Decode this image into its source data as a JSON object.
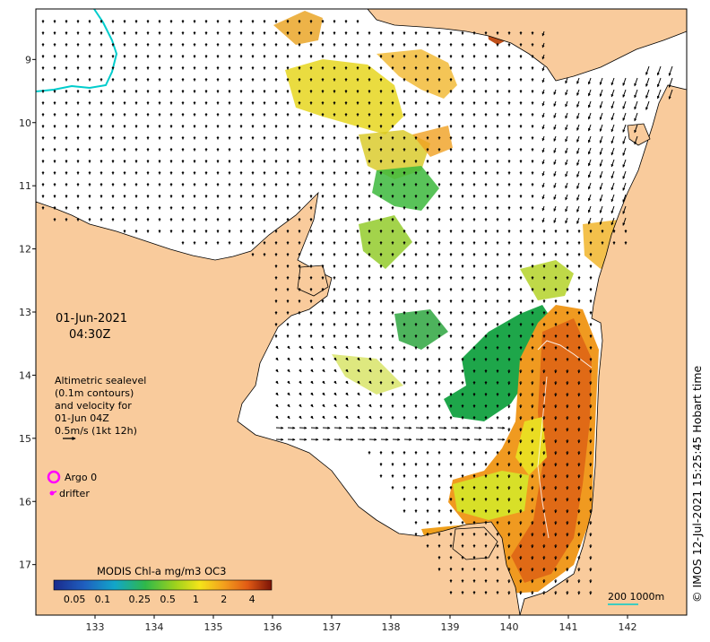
{
  "map": {
    "date": "01-Jun-2021",
    "time": "04:30Z",
    "lat_ticks": [
      "9",
      "10",
      "11",
      "12",
      "13",
      "14",
      "15",
      "16",
      "17"
    ],
    "lon_ticks": [
      "133",
      "134",
      "135",
      "136",
      "137",
      "138",
      "139",
      "140",
      "141",
      "142"
    ],
    "lat_range": [
      -17.8,
      -8.2
    ],
    "lon_range": [
      132.0,
      143.0
    ]
  },
  "legend": {
    "line1": "Altimetric sealevel",
    "line2": "(0.1m contours)",
    "line3": "and velocity for",
    "line4": "01-Jun 04Z",
    "line5": "0.5m/s (1kt 12h)",
    "argo_label": "Argo 0",
    "drifter_label": "drifter"
  },
  "colorbar": {
    "title": "MODIS Chl-a mg/m3 OC3",
    "ticks": [
      "0.05",
      "0.1",
      "0.25",
      "0.5",
      "1",
      "2",
      "4"
    ]
  },
  "scale": {
    "label": "200  1000m"
  },
  "credit": "© IMOS 12-Jul-2021 15:25:45 Hobart time",
  "colors": {
    "land": "#f9cb9c",
    "ocean": "#ffffff",
    "coast": "#000000",
    "argo": "#ff00ff",
    "drifter": "#ff00ff",
    "contour": "#00cccc"
  }
}
